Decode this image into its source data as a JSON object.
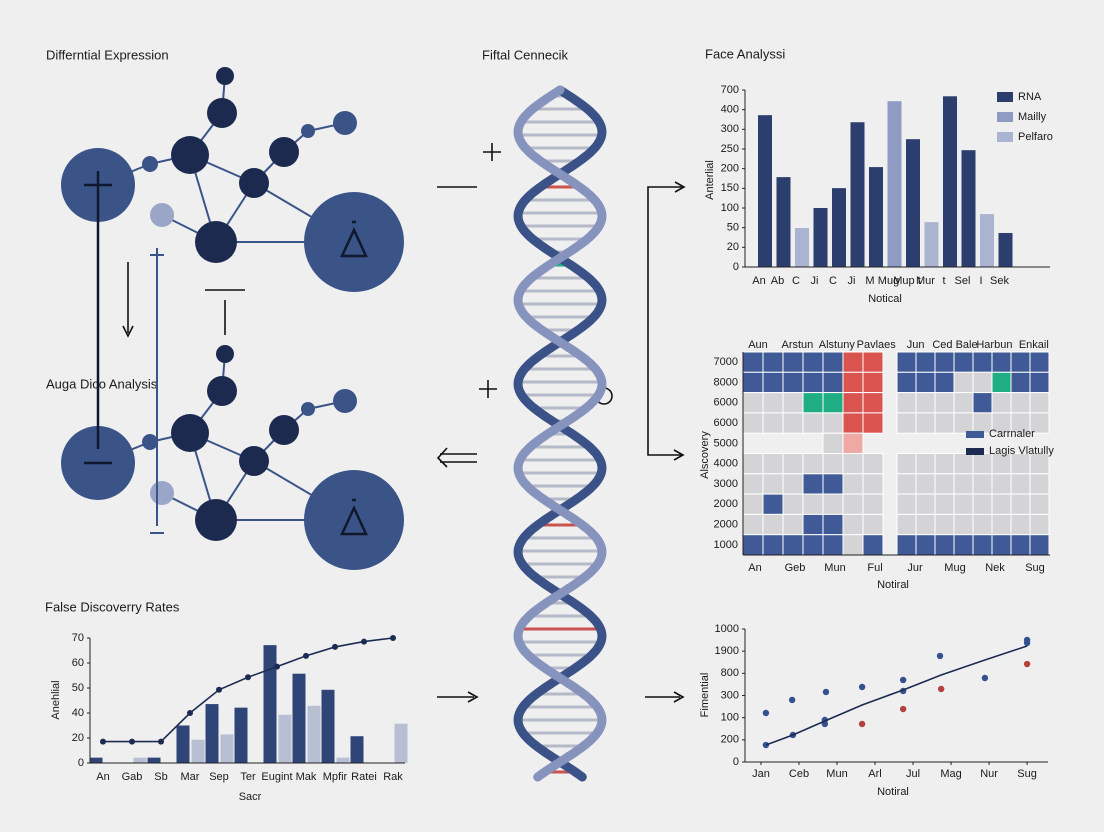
{
  "panels": {
    "network_top_title": "Differntial Expression",
    "network_bottom_title": "Auga Dico Analysis",
    "dna_title": "Fiftal Cennecik"
  },
  "chart_data": [
    {
      "type": "bar",
      "title": "Face Analyssi",
      "y_label": "Anterlial",
      "x_label": "Notical",
      "categories": [
        "An",
        "Ab",
        "C",
        "Ji",
        "C",
        "Ji",
        "M",
        "Mug",
        "Mup t",
        "Mur",
        "t",
        "Sel",
        "I",
        "Sek"
      ],
      "ylim": [
        0,
        900
      ],
      "yticks": [
        0,
        {
          "value": 100,
          "label": "20"
        },
        {
          "value": 200,
          "label": "50"
        },
        {
          "value": 300,
          "label": "100"
        },
        {
          "value": 400,
          "label": "150"
        },
        {
          "value": 500,
          "label": "200"
        },
        {
          "value": 600,
          "label": "250"
        },
        {
          "value": 700,
          "label": "300"
        },
        {
          "value": 800,
          "label": "400"
        },
        {
          "value": 900,
          "label": "700"
        }
      ],
      "legend_position": "upper right",
      "series": [
        {
          "name": "RNA",
          "color": "#2c3e6e",
          "values": [
            772,
            457,
            null,
            300,
            401,
            736,
            508,
            null,
            650,
            null,
            868,
            594,
            null,
            173
          ]
        },
        {
          "name": "Mailly",
          "color": "#8f9bc2",
          "values": [
            null,
            null,
            null,
            null,
            null,
            null,
            null,
            843,
            null,
            null,
            null,
            null,
            null,
            null
          ]
        },
        {
          "name": "Pelfaro",
          "color": "#aab3cf",
          "values": [
            null,
            null,
            198,
            null,
            null,
            null,
            null,
            null,
            null,
            228,
            null,
            null,
            269,
            null
          ]
        }
      ]
    },
    {
      "type": "heatmap",
      "y_label": "Alscovery",
      "x_label": "Notiral",
      "column_labels": [
        "Aun",
        "Arstun",
        "Alstuny",
        "Pavlaes",
        "Jun",
        "Ced Bale",
        "Harbun",
        "Enkail"
      ],
      "x_tick_labels": [
        "An",
        "Geb",
        "Mun",
        "Ful",
        "Jur",
        "Mug",
        "Nek",
        "Sug"
      ],
      "row_labels": [
        "7000",
        "8000",
        "6000",
        "6000",
        "5000",
        "4000",
        "3000",
        "2000",
        "2000",
        "1000"
      ],
      "palette": [
        "#d4d4d6",
        "#3f5a96",
        "#1fae83",
        "#d9544f",
        "#eea9a5"
      ],
      "values": [
        [
          1,
          1,
          1,
          1,
          1,
          3,
          3,
          1,
          1,
          1,
          1,
          1,
          1,
          1,
          1
        ],
        [
          1,
          1,
          1,
          1,
          1,
          3,
          3,
          1,
          1,
          1,
          0,
          0,
          2,
          1,
          1
        ],
        [
          0,
          0,
          0,
          2,
          2,
          3,
          3,
          0,
          0,
          0,
          0,
          1,
          0,
          0,
          0
        ],
        [
          0,
          0,
          0,
          0,
          0,
          3,
          3,
          0,
          0,
          0,
          0,
          0,
          0,
          0,
          0
        ],
        [
          null,
          null,
          null,
          null,
          0,
          4,
          null,
          null,
          null,
          null,
          null,
          null,
          null,
          null,
          null
        ],
        [
          0,
          0,
          0,
          0,
          0,
          0,
          0,
          0,
          0,
          0,
          0,
          0,
          0,
          0,
          0
        ],
        [
          0,
          0,
          0,
          1,
          1,
          0,
          0,
          0,
          0,
          0,
          0,
          0,
          0,
          0,
          0
        ],
        [
          0,
          1,
          0,
          0,
          0,
          0,
          0,
          0,
          0,
          0,
          0,
          0,
          0,
          0,
          0
        ],
        [
          0,
          0,
          0,
          1,
          1,
          0,
          0,
          0,
          0,
          0,
          0,
          0,
          0,
          0,
          0
        ],
        [
          1,
          1,
          1,
          1,
          1,
          0,
          1,
          1,
          1,
          1,
          1,
          1,
          1,
          1,
          1
        ]
      ],
      "legend": [
        {
          "name": "Carrnaler",
          "color": "#3f5a96"
        },
        {
          "name": "Lagis Vlatully",
          "color": "#1d2b52"
        }
      ]
    },
    {
      "type": "scatter",
      "y_label": "Fimential",
      "x_label": "Notiral",
      "xlim": [
        -0.42,
        7.55
      ],
      "xticks": [
        {
          "value": 0,
          "label": "Jan"
        },
        {
          "value": 1,
          "label": "Ceb"
        },
        {
          "value": 2,
          "label": "Mun"
        },
        {
          "value": 3,
          "label": "Arl"
        },
        {
          "value": 4,
          "label": "Jul"
        },
        {
          "value": 5,
          "label": "Mag"
        },
        {
          "value": 6,
          "label": "Nur"
        },
        {
          "value": 7,
          "label": "Sug"
        }
      ],
      "ylim": [
        0,
        1200
      ],
      "yticks": [
        0,
        {
          "value": 200,
          "label": "200"
        },
        {
          "value": 400,
          "label": "100"
        },
        {
          "value": 600,
          "label": "300"
        },
        {
          "value": 800,
          "label": "800"
        },
        {
          "value": 1000,
          "label": "1900"
        },
        {
          "value": 1200,
          "label": "1000"
        }
      ],
      "series": [
        {
          "color": "#34508f",
          "mark": "point",
          "x": [
            0.13,
            0.82,
            1.71,
            2.66,
            3.74,
            4.71,
            5.89,
            7.0,
            0.13,
            0.84,
            1.68,
            1.68,
            3.74,
            7.0
          ],
          "values": [
            442,
            560,
            632,
            677,
            740,
            957,
            758,
            1101,
            153,
            244,
            379,
            343,
            641,
            1074
          ]
        },
        {
          "color": "#b5403e",
          "mark": "point",
          "x": [
            2.66,
            3.74,
            4.74,
            7.0
          ],
          "values": [
            343,
            478,
            659,
            884
          ]
        },
        {
          "color": "#1d2b52",
          "mark": "line",
          "x": [
            0.13,
            0.84,
            1.68,
            2.66,
            3.74,
            4.74,
            5.89,
            7.0
          ],
          "values": [
            153,
            244,
            370,
            514,
            650,
            785,
            920,
            1047
          ]
        }
      ]
    },
    {
      "type": "combo",
      "title": "False Discoverry Rates",
      "y_label": "Anehlial",
      "x_label": "Sacr",
      "categories": [
        "An",
        "Gab",
        "Sb",
        "Mar",
        "Sep",
        "Ter",
        "Eugint",
        "Mak",
        "Mpfir",
        "Ratei",
        "Rak"
      ],
      "ylim": [
        0,
        70
      ],
      "yticks": [
        0,
        {
          "value": 14,
          "label": "20"
        },
        {
          "value": 28,
          "label": "40"
        },
        {
          "value": 42,
          "label": "50"
        },
        {
          "value": 56,
          "label": "60"
        },
        70
      ],
      "series": [
        {
          "color": "#2f4578",
          "mark": "bar",
          "values": [
            3,
            null,
            3,
            21,
            33,
            31,
            66,
            50,
            41,
            15,
            null
          ]
        },
        {
          "color": "#b8bfd3",
          "mark": "bar",
          "values": [
            null,
            3,
            null,
            13,
            16,
            null,
            27,
            32,
            3,
            null,
            22
          ]
        },
        {
          "color": "#1d2b52",
          "mark": "line",
          "values": [
            12,
            12,
            12,
            28,
            41,
            48,
            54,
            60,
            65,
            68,
            70
          ]
        }
      ]
    }
  ]
}
